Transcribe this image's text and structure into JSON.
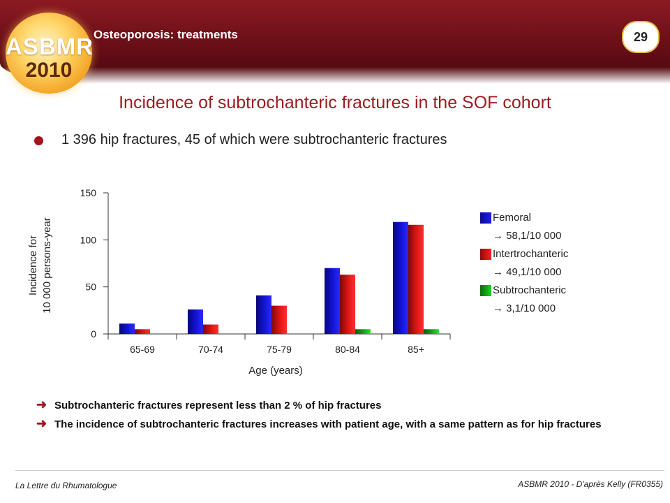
{
  "header": {
    "title": "Osteoporosis: treatments",
    "page_number": "29",
    "logo_text": "ASBMR",
    "logo_year": "2010"
  },
  "slide": {
    "title": "Incidence of subtrochanteric fractures in the SOF cohort",
    "bullet": "1 396 hip fractures,  45 of which were subtrochanteric  fractures"
  },
  "chart_data": {
    "type": "bar",
    "categories": [
      "65-69",
      "70-74",
      "75-79",
      "80-84",
      "85+"
    ],
    "series": [
      {
        "name": "Femoral",
        "values": [
          11,
          26,
          41,
          70,
          119
        ],
        "color": "#1414d6"
      },
      {
        "name": "Intertrochanteric",
        "values": [
          5,
          10,
          30,
          63,
          116
        ],
        "color": "#e01616"
      },
      {
        "name": "Subtrochanteric",
        "values": [
          0,
          0,
          0,
          5,
          5
        ],
        "color": "#17a317"
      }
    ],
    "title": "",
    "xlabel": "Age (years)",
    "ylabel": "Incidence for 10 000 persons-year",
    "ylim": [
      0,
      150
    ],
    "yticks": [
      0,
      50,
      100,
      150
    ],
    "grid": false,
    "legend_position": "right"
  },
  "legend": {
    "items": [
      {
        "name": "Femoral",
        "note": "→ 58,1/10 000",
        "color": "#1414d6"
      },
      {
        "name": "Intertrochanteric",
        "note": "→ 49,1/10 000",
        "color": "#e01616"
      },
      {
        "name": "Subtrochanteric",
        "note": "→ 3,1/10 000",
        "color": "#17a317"
      }
    ]
  },
  "conclusions": [
    "Subtrochanteric fractures  represent less than  2 % of hip fractures",
    "The incidence of subtrochanteric fractures increases with patient age, with a same pattern as for  hip fractures"
  ],
  "footer": {
    "left": "La Lettre du Rhumatologue",
    "right": "ASBMR 2010 - D'après  Kelly (FR0355)"
  }
}
